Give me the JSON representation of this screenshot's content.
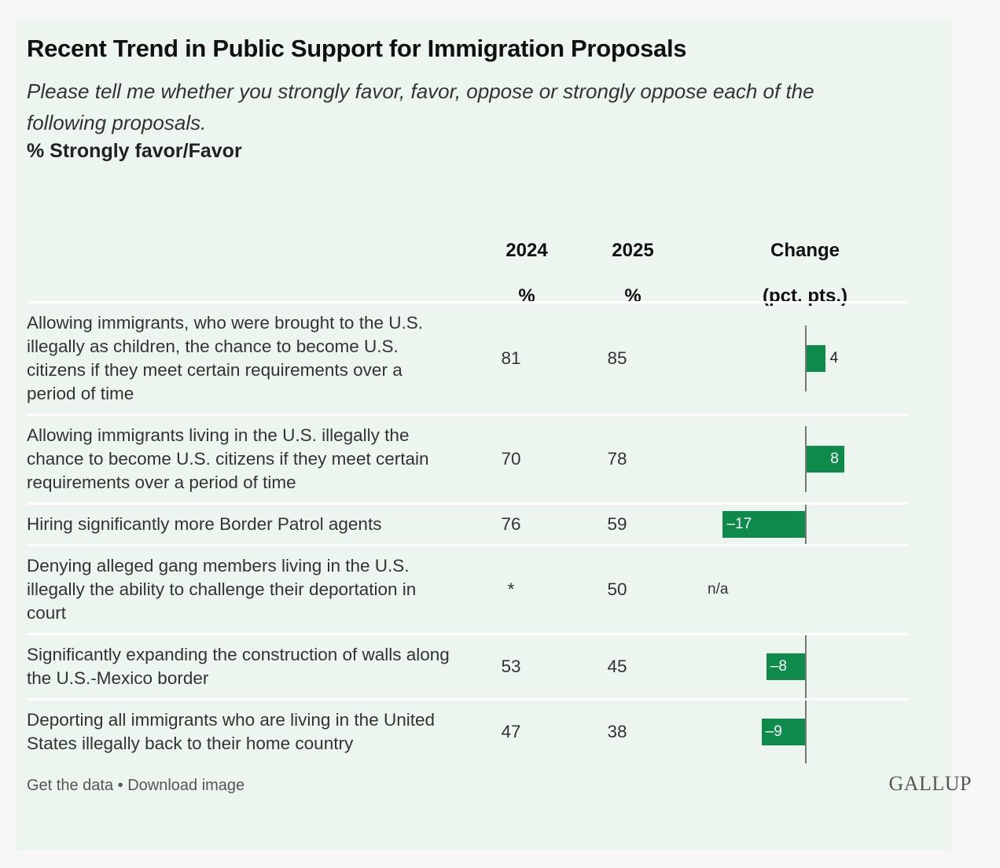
{
  "chart_data": {
    "type": "table",
    "title": "Recent Trend in Public Support for Immigration Proposals",
    "subtitle": "Please tell me whether you strongly favor, favor, oppose or strongly oppose each of the following proposals.",
    "measure": "% Strongly favor/Favor",
    "columns": {
      "y2024": "2024",
      "y2024_unit": "%",
      "y2025": "2025",
      "y2025_unit": "%",
      "change": "Change",
      "change_unit": "(pct. pts.)"
    },
    "rows": [
      {
        "label": "Allowing immigrants, who were brought to the U.S. illegally as children, the chance to become U.S. citizens if they meet certain requirements over a period of time",
        "y2024": "81",
        "y2025": "85",
        "change": 4,
        "change_label": "4"
      },
      {
        "label": "Allowing immigrants living in the U.S. illegally the chance to become U.S. citizens if they meet certain requirements over a period of time",
        "y2024": "70",
        "y2025": "78",
        "change": 8,
        "change_label": "8"
      },
      {
        "label": "Hiring significantly more Border Patrol agents",
        "y2024": "76",
        "y2025": "59",
        "change": -17,
        "change_label": "–17"
      },
      {
        "label": "Denying alleged gang members living in the U.S. illegally the ability to challenge their deportation in court",
        "y2024": "*",
        "y2025": "50",
        "change": null,
        "change_label": "n/a"
      },
      {
        "label": "Significantly expanding the construction of walls along the U.S.-Mexico border",
        "y2024": "53",
        "y2025": "45",
        "change": -8,
        "change_label": "–8"
      },
      {
        "label": "Deporting all immigrants who are living in the United States illegally back to their home country",
        "y2024": "47",
        "y2025": "38",
        "change": -9,
        "change_label": "–9"
      }
    ],
    "bar_color": "#0e8a4a"
  },
  "footer": {
    "get_data": "Get the data",
    "separator": " • ",
    "download": "Download image",
    "logo": "GALLUP"
  }
}
